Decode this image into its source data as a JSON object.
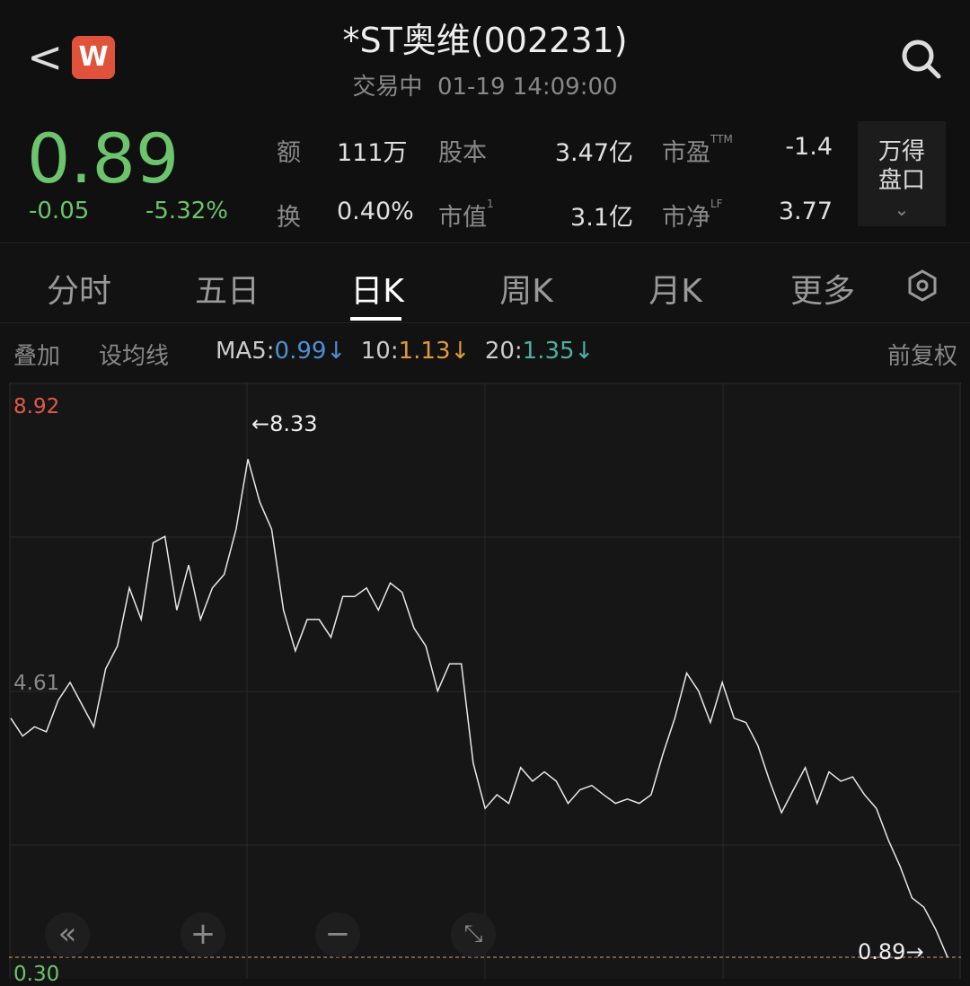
{
  "header": {
    "title": "*ST奥维(002231)",
    "status": "交易中",
    "datetime": "01-19 14:09:00",
    "logo_letter": "W"
  },
  "quote": {
    "price": "0.89",
    "change": "-0.05",
    "change_pct": "-5.32%",
    "stats": [
      {
        "label": "额",
        "value": "111万"
      },
      {
        "label": "股本",
        "value": "3.47亿"
      },
      {
        "label": "市盈",
        "sup": "TTM",
        "value": "-1.4"
      },
      {
        "label": "换",
        "value": "0.40%"
      },
      {
        "label": "市值",
        "sup": "1",
        "value": "3.1亿"
      },
      {
        "label": "市净",
        "sup": "LF",
        "value": "3.77"
      }
    ],
    "wind_button": [
      "万得",
      "盘口"
    ]
  },
  "tabs": [
    {
      "label": "分时"
    },
    {
      "label": "五日"
    },
    {
      "label": "日K",
      "active": true
    },
    {
      "label": "周K"
    },
    {
      "label": "月K"
    },
    {
      "label": "更多"
    }
  ],
  "indicators": {
    "overlay": "叠加",
    "set_ma": "设均线",
    "ma5_label": "MA5:",
    "ma5": "0.99↓",
    "ma10_label": "10:",
    "ma10": "1.13↓",
    "ma20_label": "20:",
    "ma20": "1.35↓",
    "adjust": "前复权",
    "colors": {
      "ma5": "#4f8fd6",
      "ma10": "#e09a3a",
      "ma20": "#4fb0a0",
      "up": "#e05a4a",
      "down": "#6cc46c"
    }
  },
  "chart_data": {
    "type": "line",
    "y_labels": [
      "8.92",
      "4.61",
      "0.30"
    ],
    "ylim": [
      0.3,
      8.92
    ],
    "max_annotation": "←8.33",
    "last_annotation": "0.89→",
    "grid": true,
    "values": [
      4.23,
      3.98,
      4.11,
      4.04,
      4.48,
      4.73,
      4.42,
      4.11,
      4.92,
      5.24,
      6.05,
      5.61,
      6.68,
      6.77,
      5.74,
      6.37,
      5.61,
      6.05,
      6.24,
      6.87,
      7.85,
      7.25,
      6.87,
      5.74,
      5.17,
      5.61,
      5.61,
      5.36,
      5.93,
      5.93,
      6.05,
      5.74,
      6.12,
      5.99,
      5.49,
      5.24,
      4.61,
      4.99,
      4.99,
      3.6,
      2.97,
      3.16,
      3.04,
      3.54,
      3.35,
      3.48,
      3.35,
      3.04,
      3.23,
      3.29,
      3.16,
      3.04,
      3.1,
      3.04,
      3.16,
      3.73,
      4.23,
      4.86,
      4.61,
      4.17,
      4.73,
      4.23,
      4.17,
      3.85,
      3.35,
      2.91,
      3.23,
      3.54,
      3.04,
      3.48,
      3.35,
      3.41,
      3.16,
      2.97,
      2.53,
      2.16,
      1.72,
      1.59,
      1.28,
      0.89
    ]
  }
}
